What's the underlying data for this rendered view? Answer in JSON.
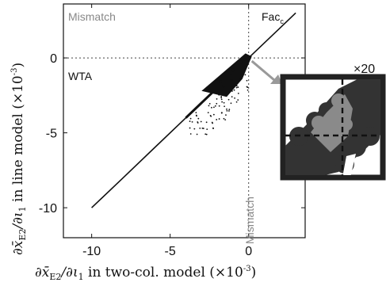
{
  "chart_data": {
    "type": "scatter",
    "title": "",
    "xlim": [
      -11.8,
      3.6
    ],
    "ylim": [
      -12,
      3.6
    ],
    "xticks": [
      {
        "value": -10,
        "label": "-10"
      },
      {
        "value": -5,
        "label": "-5"
      },
      {
        "value": 0,
        "label": "0"
      }
    ],
    "yticks": [
      {
        "value": 0,
        "label": "0"
      },
      {
        "value": -5,
        "label": "-5"
      },
      {
        "value": -10,
        "label": "-10"
      }
    ],
    "xlabel": {
      "prefix": "∂x̄",
      "sub1": "E2",
      "mid": "/∂ι",
      "sub2": "1",
      "text": " in two-col. model (×10",
      "exp": "-3",
      "close": ")"
    },
    "ylabel": {
      "prefix": "∂x̄",
      "sub1": "E2",
      "mid": "/∂ι",
      "sub2": "1",
      "text": " in line model (×10",
      "exp": "-3",
      "close": ")"
    },
    "grid": false,
    "reference_lines": {
      "x": 0,
      "y": 0,
      "style": "dotted"
    },
    "regions": {
      "mismatch_top": "Mismatch",
      "mismatch_vertical": "Mismatch",
      "wta": "WTA",
      "fac": "Fac"
    },
    "series": [
      {
        "points_trend": [
          [
            -10,
            -10
          ],
          [
            -8,
            -8
          ],
          [
            -6,
            -6
          ],
          [
            -4,
            -4
          ],
          [
            -2,
            -2
          ],
          [
            0,
            0
          ],
          [
            1,
            1
          ],
          [
            2,
            2
          ],
          [
            3,
            3
          ]
        ],
        "cluster_dense": [
          [
            -2.6,
            -2.0
          ],
          [
            -1.8,
            -1.6
          ],
          [
            -1.0,
            -0.8
          ],
          [
            -0.5,
            -0.3
          ],
          [
            -0.2,
            -0.1
          ]
        ],
        "cluster_scatter": [
          [
            -3.2,
            -4.6
          ],
          [
            -2.8,
            -4.2
          ],
          [
            -2.0,
            -3.6
          ],
          [
            -1.6,
            -3.0
          ],
          [
            -1.2,
            -2.4
          ],
          [
            -0.6,
            -1.6
          ]
        ],
        "color": "#111111"
      }
    ],
    "inset": {
      "zoom_label": "×20",
      "dark_color": "#333333",
      "gray_color": "#8a8a8a"
    },
    "colors": {
      "points": "#111111",
      "region_text": "#888888",
      "arrow": "#999999"
    }
  }
}
